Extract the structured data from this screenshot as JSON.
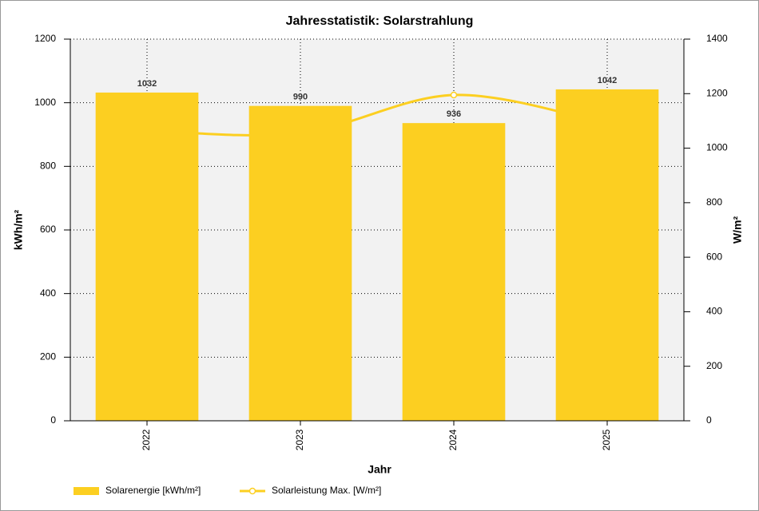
{
  "chart_data": {
    "type": "bar-line",
    "title": "Jahresstatistik: Solarstrahlung",
    "x_label": "Jahr",
    "y_label": "kWh/m²",
    "y2_label": "W/m²",
    "categories": [
      "2022",
      "2023",
      "2024",
      "2025"
    ],
    "series": [
      {
        "name": "Solarenergie [kWh/m²]",
        "color": "#fccf21",
        "values": [
          1032,
          990,
          936,
          1042
        ]
      },
      {
        "name": "Solarleistung Max. [W/m²]",
        "color": "#fccf21",
        "axis": "y2",
        "values": [
          1065,
          1055,
          1195,
          1090
        ]
      }
    ],
    "ylim": [
      0,
      1200
    ],
    "yticks": [
      0,
      200,
      400,
      600,
      800,
      1000,
      1200
    ],
    "y2lim": [
      0,
      1400
    ],
    "y2ticks": [
      0,
      200,
      400,
      600,
      800,
      1000,
      1200,
      1400
    ],
    "grid": true
  }
}
